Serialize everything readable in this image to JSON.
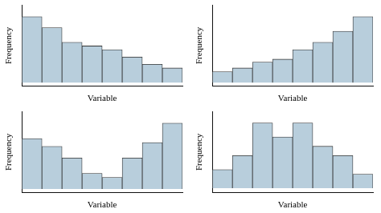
{
  "chart_data": [
    {
      "type": "bar",
      "categories": [
        null,
        null,
        null,
        null,
        null,
        null,
        null,
        null
      ],
      "values": [
        9,
        7.5,
        5.5,
        5,
        4.5,
        3.5,
        2.5,
        2
      ],
      "color": "#b8cedc",
      "xlabel": "Variable",
      "ylabel": "Frequency",
      "ylim": [
        -0.5,
        10.62
      ],
      "grid": false,
      "tick_labels": false
    },
    {
      "type": "bar",
      "categories": [
        null,
        null,
        null,
        null,
        null,
        null,
        null,
        null
      ],
      "values": [
        1.5,
        2,
        2.8,
        3.2,
        4.5,
        5.5,
        7,
        9
      ],
      "color": "#b8cedc",
      "xlabel": "Variable",
      "ylabel": "Frequency",
      "ylim": [
        -0.5,
        10.62
      ],
      "grid": false,
      "tick_labels": false
    },
    {
      "type": "bar",
      "categories": [
        null,
        null,
        null,
        null,
        null,
        null,
        null,
        null
      ],
      "values": [
        6.5,
        5.5,
        4,
        2,
        1.5,
        4,
        6,
        8.5
      ],
      "color": "#b8cedc",
      "xlabel": "Variable",
      "ylabel": "Frequency",
      "ylim": [
        -0.5,
        10.03
      ],
      "grid": false,
      "tick_labels": false
    },
    {
      "type": "bar",
      "categories": [
        null,
        null,
        null,
        null,
        null,
        null,
        null,
        null
      ],
      "values": [
        2,
        3.5,
        7,
        5.5,
        7,
        4.5,
        3.5,
        1.5
      ],
      "color": "#b8cedc",
      "xlabel": "Variable",
      "ylabel": "Frequency",
      "ylim": [
        -0.5,
        8.26
      ],
      "grid": false,
      "tick_labels": false
    }
  ]
}
